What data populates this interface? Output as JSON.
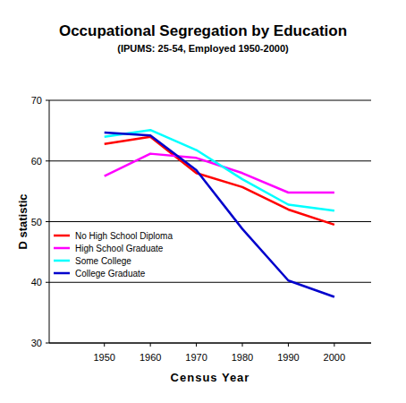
{
  "chart_data": {
    "type": "line",
    "title": "Occupational Segregation by Education",
    "subtitle": "(IPUMS: 25-54, Employed 1950-2000)",
    "x_label": "Census Year",
    "y_label": "D statistic",
    "x": [
      1950,
      1960,
      1970,
      1980,
      1990,
      2000
    ],
    "xlim": [
      1938,
      2008
    ],
    "xticks": [
      1950,
      1960,
      1970,
      1980,
      1990,
      2000
    ],
    "ylim": [
      30,
      70
    ],
    "yticks": [
      30,
      40,
      50,
      60,
      70
    ],
    "grid": true,
    "legend": "left",
    "series": [
      {
        "name": "No High School Diploma",
        "color": "#ff0000",
        "values": [
          62.8,
          64.0,
          58.0,
          55.7,
          52.0,
          49.5
        ]
      },
      {
        "name": "High School Graduate",
        "color": "#ff00ff",
        "values": [
          57.5,
          61.2,
          60.5,
          58.0,
          54.8,
          54.8
        ]
      },
      {
        "name": "Some College",
        "color": "#00ffff",
        "values": [
          64.0,
          65.1,
          61.8,
          57.0,
          52.8,
          51.8
        ]
      },
      {
        "name": "College Graduate",
        "color": "#0000cc",
        "values": [
          64.7,
          64.2,
          58.5,
          48.8,
          40.3,
          37.6
        ]
      }
    ]
  }
}
